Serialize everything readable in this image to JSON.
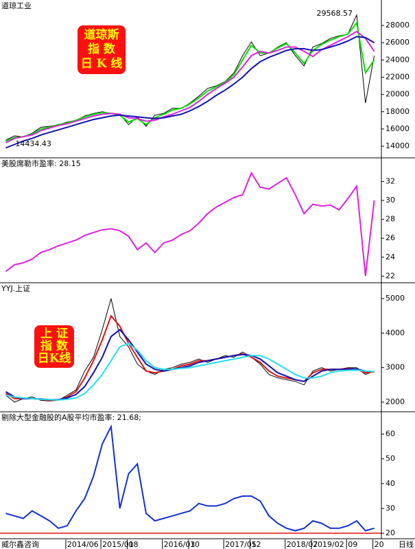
{
  "chart_data": [
    {
      "type": "line",
      "title": "道琼工业",
      "badge": [
        "道琼斯",
        "指  数",
        "日 K 线"
      ],
      "annotations": [
        {
          "text": "29568.57",
          "index": 40
        },
        {
          "text": "14434.43",
          "index": 0
        }
      ],
      "ylim": [
        12650,
        30950
      ],
      "yticks": [
        14000,
        16000,
        18000,
        20000,
        22000,
        24000,
        26000,
        28000
      ],
      "series": [
        {
          "color": "#000000",
          "values": [
            14700,
            15200,
            15100,
            15500,
            16200,
            16300,
            16500,
            16800,
            17000,
            17500,
            17800,
            18000,
            17800,
            17700,
            16500,
            17400,
            16300,
            17600,
            17800,
            18400,
            18400,
            19000,
            19800,
            20700,
            21000,
            21500,
            22500,
            24500,
            26100,
            24500,
            24800,
            25500,
            26000,
            24500,
            23300,
            25500,
            25900,
            26500,
            26800,
            27000,
            29200,
            19000,
            24500
          ]
        },
        {
          "color": "#00e000",
          "values": [
            14600,
            15000,
            15100,
            15400,
            16000,
            16200,
            16500,
            16700,
            17000,
            17400,
            17700,
            17900,
            17800,
            17600,
            16800,
            17200,
            16500,
            17300,
            17700,
            18200,
            18400,
            18900,
            19600,
            20400,
            20900,
            21400,
            22300,
            24000,
            25700,
            24800,
            24800,
            25400,
            25900,
            24800,
            23600,
            25100,
            25800,
            26300,
            26700,
            27000,
            28300,
            22500,
            24000
          ]
        },
        {
          "color": "#e020e0",
          "values": [
            14400,
            14900,
            15100,
            15300,
            15800,
            16100,
            16400,
            16600,
            16900,
            17200,
            17500,
            17700,
            17800,
            17700,
            17300,
            17200,
            16900,
            17000,
            17400,
            17700,
            18100,
            18500,
            19200,
            20000,
            20700,
            21300,
            22000,
            23200,
            24500,
            25000,
            24800,
            25100,
            25500,
            25500,
            25000,
            24400,
            25200,
            25700,
            26200,
            26700,
            27300,
            26500,
            25000
          ]
        },
        {
          "color": "#1010b0",
          "values": [
            13800,
            14200,
            14600,
            14900,
            15300,
            15600,
            15900,
            16200,
            16500,
            16800,
            17100,
            17300,
            17500,
            17600,
            17500,
            17400,
            17300,
            17200,
            17300,
            17500,
            17700,
            18100,
            18600,
            19200,
            19900,
            20500,
            21200,
            22000,
            23000,
            23800,
            24300,
            24700,
            25100,
            25300,
            25300,
            25100,
            25200,
            25500,
            25800,
            26200,
            26700,
            26600,
            26000
          ]
        }
      ]
    },
    {
      "type": "line",
      "title": "美股席勒市盈率: 28.15",
      "title_color": "#e020e0",
      "ylim": [
        21.3,
        34.5
      ],
      "yticks": [
        22,
        24,
        26,
        28,
        30,
        32
      ],
      "series": [
        {
          "color": "#e020e0",
          "values": [
            22.5,
            23.2,
            23.4,
            23.8,
            24.5,
            24.8,
            25.2,
            25.5,
            25.8,
            26.3,
            26.6,
            26.9,
            27.0,
            26.8,
            26.2,
            24.8,
            25.5,
            24.5,
            25.5,
            25.8,
            26.4,
            26.8,
            27.6,
            28.6,
            29.3,
            29.8,
            30.3,
            30.6,
            32.9,
            31.4,
            31.2,
            31.8,
            32.4,
            30.6,
            28.6,
            29.6,
            29.4,
            29.5,
            29.0,
            30.2,
            31.5,
            22.0,
            30.0
          ]
        }
      ]
    },
    {
      "type": "line",
      "title": "YYJ.上证",
      "badge": [
        "上  证",
        "指  数",
        "日K线"
      ],
      "ylim": [
        1720,
        5460
      ],
      "yticks": [
        2000,
        3000,
        4000,
        5000
      ],
      "series": [
        {
          "color": "#000000",
          "values": [
            2200,
            2000,
            2100,
            2150,
            2050,
            2030,
            2050,
            2200,
            2350,
            2900,
            3300,
            4100,
            5000,
            3900,
            3600,
            3100,
            2900,
            2800,
            2950,
            3000,
            3100,
            3150,
            3250,
            3150,
            3250,
            3350,
            3300,
            3450,
            3300,
            3100,
            2800,
            2700,
            2650,
            2600,
            2500,
            2900,
            3000,
            2900,
            2950,
            3000,
            3000,
            2800,
            2900
          ]
        },
        {
          "color": "#e01010",
          "values": [
            2250,
            2100,
            2100,
            2100,
            2080,
            2050,
            2060,
            2150,
            2300,
            2700,
            3200,
            3800,
            4500,
            4200,
            3700,
            3300,
            2900,
            2850,
            2900,
            2950,
            3050,
            3100,
            3200,
            3200,
            3250,
            3300,
            3350,
            3400,
            3300,
            3150,
            2900,
            2750,
            2700,
            2650,
            2600,
            2850,
            2950,
            2950,
            2950,
            2980,
            2950,
            2850,
            2880
          ]
        },
        {
          "color": "#1010b0",
          "values": [
            2300,
            2150,
            2100,
            2100,
            2090,
            2070,
            2070,
            2120,
            2220,
            2450,
            2850,
            3300,
            3900,
            4100,
            3800,
            3450,
            3100,
            2950,
            2900,
            2950,
            3000,
            3050,
            3150,
            3200,
            3250,
            3300,
            3350,
            3380,
            3350,
            3250,
            3050,
            2850,
            2750,
            2650,
            2600,
            2750,
            2900,
            2950,
            2950,
            2960,
            2960,
            2900,
            2880
          ]
        },
        {
          "color": "#20e0f0",
          "values": [
            2200,
            2150,
            2120,
            2100,
            2080,
            2070,
            2060,
            2080,
            2120,
            2250,
            2500,
            2800,
            3200,
            3600,
            3700,
            3500,
            3200,
            3000,
            2950,
            2950,
            2980,
            3000,
            3050,
            3100,
            3150,
            3200,
            3250,
            3300,
            3350,
            3350,
            3250,
            3100,
            2950,
            2800,
            2700,
            2700,
            2750,
            2850,
            2900,
            2920,
            2930,
            2900,
            2880
          ]
        }
      ]
    },
    {
      "type": "line",
      "title": "剔除大型金融股的A股平均市盈率: 21.68;",
      "title_color": "#1010b0",
      "ylim": [
        17.8,
        69
      ],
      "yticks": [
        20,
        30,
        40,
        50,
        60
      ],
      "ref_line": {
        "value": 20,
        "color": "#e01010"
      },
      "series": [
        {
          "color": "#1030d0",
          "values": [
            28,
            27,
            26,
            29,
            27,
            25,
            22,
            23,
            29,
            34,
            43,
            56,
            63,
            30,
            44,
            48,
            28,
            25,
            26,
            27,
            28,
            29,
            32,
            31,
            31,
            32,
            34,
            35,
            35,
            33,
            27,
            24,
            22,
            21,
            22,
            25,
            24,
            22,
            22,
            23,
            25,
            21,
            22
          ]
        }
      ],
      "categories": [
        null,
        null,
        null,
        null,
        null,
        null,
        null,
        "2014/06",
        null,
        null,
        null,
        "2015/01",
        null,
        null,
        "08",
        null,
        null,
        null,
        "2016/03",
        null,
        null,
        "10",
        null,
        null,
        null,
        "2017/05",
        null,
        null,
        "12",
        null,
        null,
        null,
        "2018/07",
        null,
        null,
        "2019/02",
        null,
        null,
        null,
        "09",
        null,
        null,
        "20"
      ],
      "source": "威尔鑫咨询",
      "period": "日线"
    }
  ]
}
